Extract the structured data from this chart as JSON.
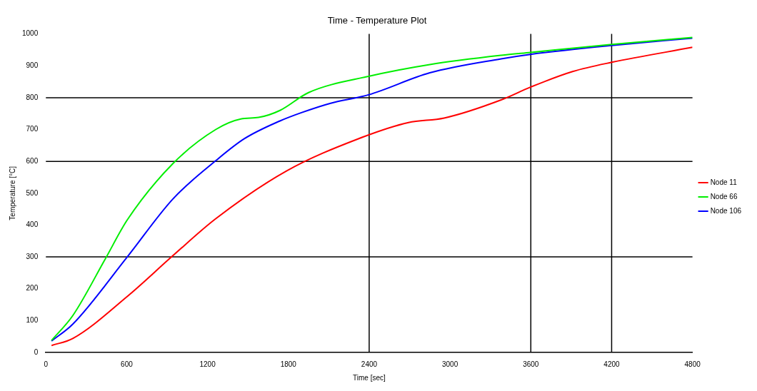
{
  "chart_data": {
    "type": "line",
    "title": "Time - Temperature Plot",
    "xlabel": "Time [sec]",
    "ylabel": "Temperature [°C]",
    "xlim": [
      0,
      4800
    ],
    "xticks": [
      0,
      600,
      1200,
      1800,
      2400,
      3000,
      3600,
      4200,
      4800
    ],
    "ylim": [
      0,
      1000
    ],
    "yticks": [
      0,
      100,
      200,
      300,
      400,
      500,
      600,
      700,
      800,
      900,
      1000
    ],
    "grid": false,
    "legend": "right",
    "marker": "none",
    "line_style": "solid",
    "ref_lines": [
      {
        "axis": "y",
        "value": 300,
        "color": "#000000"
      },
      {
        "axis": "y",
        "value": 600,
        "color": "#000000"
      },
      {
        "axis": "y",
        "value": 800,
        "color": "#000000"
      },
      {
        "axis": "x",
        "value": 2400,
        "color": "#000000"
      },
      {
        "axis": "x",
        "value": 3600,
        "color": "#000000"
      },
      {
        "axis": "x",
        "value": 4200,
        "color": "#000000"
      }
    ],
    "series": [
      {
        "name": "Node 11",
        "color": "#ff0000",
        "x": [
          42,
          200,
          604,
          943,
          1261,
          1791,
          2320,
          2692,
          2956,
          3380,
          3597,
          3910,
          4201,
          4800
        ],
        "values": [
          22,
          44,
          176,
          304,
          420,
          571,
          671,
          722,
          736,
          793,
          833,
          882,
          911,
          958
        ]
      },
      {
        "name": "Node 66",
        "color": "#00ee00",
        "x": [
          42,
          200,
          440,
          604,
          943,
          1261,
          1447,
          1579,
          1738,
          1950,
          2395,
          2850,
          3380,
          3597,
          4201,
          4800
        ],
        "values": [
          38,
          116,
          293,
          416,
          593,
          700,
          733,
          738,
          760,
          816,
          867,
          904,
          933,
          942,
          967,
          989
        ]
      },
      {
        "name": "Node 106",
        "color": "#0000ff",
        "x": [
          42,
          200,
          604,
          943,
          1261,
          1473,
          1738,
          1897,
          2109,
          2395,
          2850,
          3380,
          3597,
          4201,
          4800
        ],
        "values": [
          36,
          89,
          300,
          482,
          602,
          671,
          727,
          753,
          782,
          809,
          878,
          922,
          936,
          964,
          987
        ]
      }
    ]
  }
}
